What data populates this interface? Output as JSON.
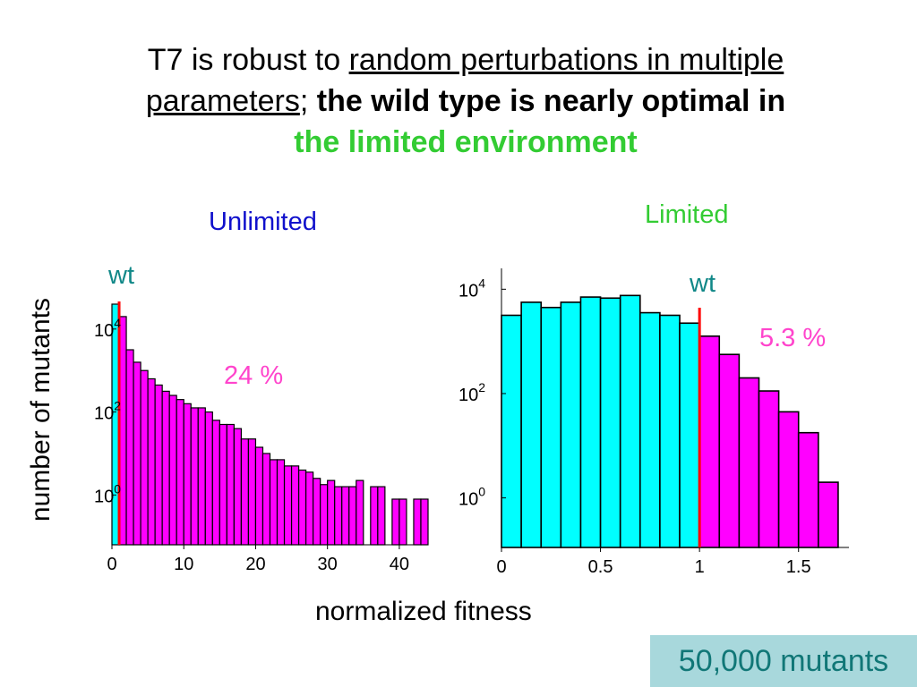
{
  "title": {
    "plain1": "T7 is robust to ",
    "underlined1": "random perturbations in multiple",
    "underlined2": "parameters",
    "sep": "; ",
    "bold": "the wild type is nearly optimal in",
    "green": "the limited environment"
  },
  "ylabel": "number of mutants",
  "xlabel": "normalized fitness",
  "footer": "50,000 mutants",
  "colors": {
    "cyan": "#00ffff",
    "magenta": "#ff00ff",
    "wt_line": "#ff0000",
    "title_blue": "#1010cc",
    "title_green": "#33cc33"
  },
  "chart_data": [
    {
      "type": "bar",
      "title": "Unlimited",
      "wt_label": "wt",
      "annotation": "24 %",
      "wt_x": 1,
      "y_scale": "log",
      "xlim": [
        0,
        44
      ],
      "ylim_log10": [
        -1.2,
        4.6
      ],
      "x_ticks": [
        0,
        10,
        20,
        30,
        40
      ],
      "y_ticks": [
        {
          "base": "10",
          "exp": "0",
          "v": 0
        },
        {
          "base": "10",
          "exp": "2",
          "v": 2
        },
        {
          "base": "10",
          "exp": "4",
          "v": 4
        }
      ],
      "bin_width": 1,
      "bins_start": [
        0,
        1,
        2,
        3,
        4,
        5,
        6,
        7,
        8,
        9,
        10,
        11,
        12,
        13,
        14,
        15,
        16,
        17,
        18,
        19,
        20,
        21,
        22,
        23,
        24,
        25,
        26,
        27,
        28,
        29,
        30,
        31,
        32,
        33,
        34,
        35,
        36,
        37,
        38,
        39,
        40,
        41,
        42,
        43
      ],
      "log10_counts": [
        4.6,
        4.3,
        3.5,
        3.2,
        3.0,
        2.8,
        2.65,
        2.5,
        2.4,
        2.3,
        2.2,
        2.1,
        2.1,
        2.0,
        1.8,
        1.7,
        1.7,
        1.6,
        1.35,
        1.35,
        1.15,
        1.0,
        0.85,
        0.85,
        0.7,
        0.7,
        0.6,
        0.55,
        0.4,
        0.25,
        0.35,
        0.2,
        0.2,
        0.2,
        0.35,
        null,
        0.2,
        0.2,
        null,
        -0.1,
        -0.1,
        null,
        -0.1,
        -0.1
      ],
      "cyan_bins": [
        0
      ]
    },
    {
      "type": "bar",
      "title": "Limited",
      "wt_label": "wt",
      "annotation": "5.3 %",
      "wt_x": 1.0,
      "y_scale": "log",
      "xlim": [
        0,
        1.75
      ],
      "ylim_log10": [
        -0.95,
        4.4
      ],
      "x_ticks": [
        0,
        0.5,
        1,
        1.5
      ],
      "y_ticks": [
        {
          "base": "10",
          "exp": "0",
          "v": 0
        },
        {
          "base": "10",
          "exp": "2",
          "v": 2
        },
        {
          "base": "10",
          "exp": "4",
          "v": 4
        }
      ],
      "bin_width": 0.1,
      "bins_start": [
        0,
        0.1,
        0.2,
        0.3,
        0.4,
        0.5,
        0.6,
        0.7,
        0.8,
        0.9,
        1.0,
        1.1,
        1.2,
        1.3,
        1.4,
        1.5,
        1.6
      ],
      "log10_counts": [
        3.5,
        3.75,
        3.65,
        3.75,
        3.85,
        3.83,
        3.88,
        3.55,
        3.5,
        3.35,
        3.1,
        2.75,
        2.3,
        2.05,
        1.65,
        1.25,
        0.3
      ],
      "cyan_bins": [
        0,
        1,
        2,
        3,
        4,
        5,
        6,
        7,
        8,
        9
      ]
    }
  ]
}
